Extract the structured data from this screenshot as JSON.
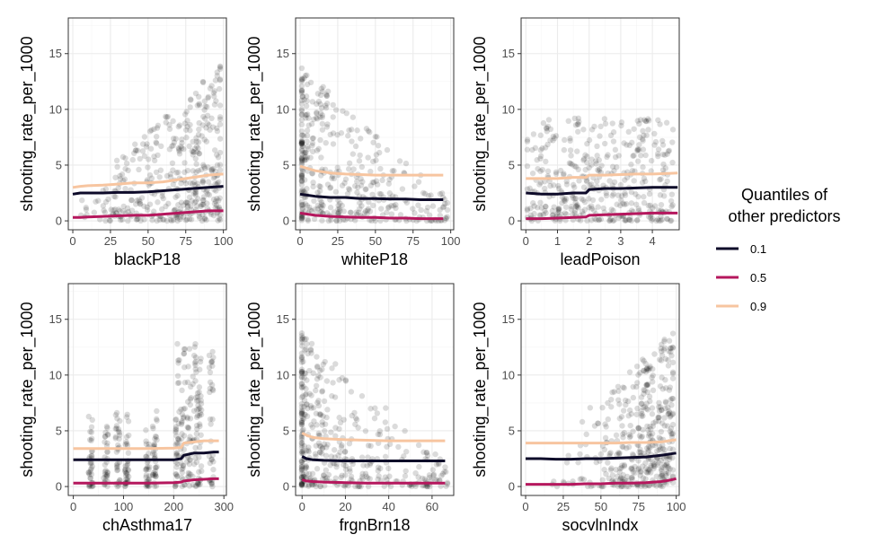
{
  "chart_data": [
    {
      "type": "scatter",
      "xlabel": "blackP18",
      "ylabel": "shooting_rate_per_1000",
      "xlim": [
        -3,
        102
      ],
      "ylim": [
        -0.8,
        18.2
      ],
      "xticks": [
        0,
        25,
        50,
        75,
        100
      ],
      "yticks": [
        0,
        5,
        10,
        15
      ],
      "grid": true,
      "scatter_pattern": "right",
      "series": [
        {
          "name": "0.1",
          "x": [
            0,
            5,
            10,
            20,
            30,
            40,
            50,
            60,
            70,
            80,
            90,
            100
          ],
          "values": [
            2.4,
            2.5,
            2.5,
            2.5,
            2.55,
            2.55,
            2.6,
            2.7,
            2.8,
            2.9,
            3.0,
            3.1
          ]
        },
        {
          "name": "0.5",
          "x": [
            0,
            5,
            10,
            20,
            30,
            40,
            50,
            60,
            70,
            80,
            90,
            100
          ],
          "values": [
            0.3,
            0.3,
            0.35,
            0.4,
            0.45,
            0.5,
            0.5,
            0.6,
            0.7,
            0.8,
            0.9,
            0.9
          ]
        },
        {
          "name": "0.9",
          "x": [
            0,
            5,
            10,
            20,
            30,
            40,
            50,
            60,
            70,
            80,
            90,
            100
          ],
          "values": [
            3.0,
            3.1,
            3.15,
            3.2,
            3.3,
            3.4,
            3.4,
            3.5,
            3.7,
            3.9,
            4.1,
            4.2
          ]
        }
      ]
    },
    {
      "type": "scatter",
      "xlabel": "whiteP18",
      "ylabel": "shooting_rate_per_1000",
      "xlim": [
        -3,
        102
      ],
      "ylim": [
        -0.8,
        18.2
      ],
      "xticks": [
        0,
        25,
        50,
        75,
        100
      ],
      "yticks": [
        0,
        5,
        10,
        15
      ],
      "grid": true,
      "scatter_pattern": "left",
      "series": [
        {
          "name": "0.1",
          "x": [
            0,
            5,
            10,
            20,
            30,
            40,
            50,
            60,
            70,
            80,
            90,
            95
          ],
          "values": [
            2.4,
            2.3,
            2.2,
            2.1,
            2.1,
            2.0,
            2.0,
            1.95,
            1.95,
            1.9,
            1.9,
            1.9
          ]
        },
        {
          "name": "0.5",
          "x": [
            0,
            5,
            10,
            20,
            30,
            40,
            50,
            60,
            70,
            80,
            90,
            95
          ],
          "values": [
            0.7,
            0.6,
            0.5,
            0.4,
            0.35,
            0.3,
            0.3,
            0.25,
            0.25,
            0.2,
            0.2,
            0.2
          ]
        },
        {
          "name": "0.9",
          "x": [
            0,
            5,
            10,
            20,
            30,
            40,
            50,
            60,
            70,
            80,
            90,
            95
          ],
          "values": [
            4.9,
            4.7,
            4.5,
            4.3,
            4.2,
            4.15,
            4.1,
            4.1,
            4.1,
            4.1,
            4.1,
            4.1
          ]
        }
      ]
    },
    {
      "type": "scatter",
      "xlabel": "leadPoison",
      "ylabel": "shooting_rate_per_1000",
      "xlim": [
        -0.15,
        4.85
      ],
      "ylim": [
        -0.8,
        18.2
      ],
      "xticks": [
        0,
        1,
        2,
        3,
        4
      ],
      "yticks": [
        0,
        5,
        10,
        15
      ],
      "grid": true,
      "scatter_pattern": "spread",
      "series": [
        {
          "name": "0.1",
          "x": [
            0,
            0.5,
            1.0,
            1.5,
            1.9,
            2.0,
            2.5,
            3.0,
            3.5,
            4.0,
            4.5,
            4.8
          ],
          "values": [
            2.5,
            2.4,
            2.4,
            2.5,
            2.5,
            2.8,
            2.9,
            2.9,
            2.95,
            3.0,
            3.0,
            3.0
          ]
        },
        {
          "name": "0.5",
          "x": [
            0,
            0.5,
            1.0,
            1.5,
            1.9,
            2.0,
            2.5,
            3.0,
            3.5,
            4.0,
            4.5,
            4.8
          ],
          "values": [
            0.2,
            0.2,
            0.25,
            0.3,
            0.35,
            0.5,
            0.55,
            0.6,
            0.65,
            0.7,
            0.7,
            0.7
          ]
        },
        {
          "name": "0.9",
          "x": [
            0,
            0.5,
            1.0,
            1.5,
            1.9,
            2.0,
            2.5,
            3.0,
            3.5,
            4.0,
            4.5,
            4.8
          ],
          "values": [
            3.8,
            3.8,
            3.8,
            3.9,
            3.9,
            4.1,
            4.1,
            4.15,
            4.2,
            4.2,
            4.25,
            4.3
          ]
        }
      ]
    },
    {
      "type": "scatter",
      "xlabel": "chAsthma17",
      "ylabel": "shooting_rate_per_1000",
      "xlim": [
        -10,
        305
      ],
      "ylim": [
        -0.8,
        18.2
      ],
      "xticks": [
        0,
        100,
        200,
        300
      ],
      "yticks": [
        0,
        5,
        10,
        15
      ],
      "grid": true,
      "scatter_pattern": "columns",
      "series": [
        {
          "name": "0.1",
          "x": [
            0,
            50,
            100,
            150,
            200,
            215,
            220,
            240,
            260,
            280,
            290
          ],
          "values": [
            2.4,
            2.4,
            2.4,
            2.4,
            2.4,
            2.5,
            2.8,
            3.0,
            3.0,
            3.1,
            3.1
          ]
        },
        {
          "name": "0.5",
          "x": [
            0,
            50,
            100,
            150,
            200,
            215,
            220,
            240,
            260,
            280,
            290
          ],
          "values": [
            0.3,
            0.3,
            0.3,
            0.3,
            0.35,
            0.4,
            0.5,
            0.6,
            0.65,
            0.7,
            0.7
          ]
        },
        {
          "name": "0.9",
          "x": [
            0,
            50,
            100,
            150,
            200,
            215,
            220,
            240,
            260,
            280,
            290
          ],
          "values": [
            3.4,
            3.4,
            3.4,
            3.4,
            3.45,
            3.5,
            3.9,
            4.0,
            4.1,
            4.1,
            4.1
          ]
        }
      ]
    },
    {
      "type": "scatter",
      "xlabel": "frgnBrn18",
      "ylabel": "shooting_rate_per_1000",
      "xlim": [
        -3,
        70
      ],
      "ylim": [
        -0.8,
        18.2
      ],
      "xticks": [
        0,
        20,
        40,
        60
      ],
      "yticks": [
        0,
        5,
        10,
        15
      ],
      "grid": true,
      "scatter_pattern": "left",
      "series": [
        {
          "name": "0.1",
          "x": [
            0,
            2,
            5,
            10,
            20,
            30,
            40,
            50,
            60,
            66
          ],
          "values": [
            2.7,
            2.5,
            2.4,
            2.35,
            2.3,
            2.3,
            2.3,
            2.3,
            2.3,
            2.3
          ]
        },
        {
          "name": "0.5",
          "x": [
            0,
            2,
            5,
            10,
            20,
            30,
            40,
            50,
            60,
            66
          ],
          "values": [
            0.6,
            0.5,
            0.45,
            0.4,
            0.35,
            0.3,
            0.3,
            0.3,
            0.3,
            0.3
          ]
        },
        {
          "name": "0.9",
          "x": [
            0,
            2,
            5,
            10,
            20,
            30,
            40,
            50,
            60,
            66
          ],
          "values": [
            4.8,
            4.6,
            4.4,
            4.3,
            4.2,
            4.15,
            4.1,
            4.1,
            4.1,
            4.1
          ]
        }
      ]
    },
    {
      "type": "scatter",
      "xlabel": "socvlnIndx",
      "ylabel": "shooting_rate_per_1000",
      "xlim": [
        -3,
        102
      ],
      "ylim": [
        -0.8,
        18.2
      ],
      "xticks": [
        0,
        25,
        50,
        75,
        100
      ],
      "yticks": [
        0,
        5,
        10,
        15
      ],
      "grid": true,
      "scatter_pattern": "right-strong",
      "series": [
        {
          "name": "0.1",
          "x": [
            0,
            10,
            20,
            30,
            40,
            50,
            60,
            70,
            80,
            90,
            95,
            100
          ],
          "values": [
            2.5,
            2.5,
            2.45,
            2.45,
            2.5,
            2.5,
            2.55,
            2.6,
            2.65,
            2.8,
            2.9,
            3.0
          ]
        },
        {
          "name": "0.5",
          "x": [
            0,
            10,
            20,
            30,
            40,
            50,
            60,
            70,
            80,
            90,
            95,
            100
          ],
          "values": [
            0.2,
            0.2,
            0.2,
            0.2,
            0.25,
            0.25,
            0.3,
            0.3,
            0.35,
            0.45,
            0.55,
            0.7
          ]
        },
        {
          "name": "0.9",
          "x": [
            0,
            10,
            20,
            30,
            40,
            50,
            60,
            70,
            80,
            90,
            95,
            100
          ],
          "values": [
            3.9,
            3.9,
            3.9,
            3.9,
            3.9,
            3.9,
            3.9,
            3.95,
            3.95,
            4.0,
            4.1,
            4.2
          ]
        }
      ]
    }
  ],
  "legend": {
    "title_line1": "Quantiles of",
    "title_line2": "other predictors",
    "items": [
      {
        "label": "0.1",
        "color": "#0d0a29"
      },
      {
        "label": "0.5",
        "color": "#b5175d"
      },
      {
        "label": "0.9",
        "color": "#f7c5a0"
      }
    ]
  },
  "colors": {
    "points": "#000000",
    "grid_major": "#ebebeb",
    "grid_minor": "#f5f5f5",
    "panel_border": "#333333",
    "tick_text": "#4d4d4d"
  }
}
